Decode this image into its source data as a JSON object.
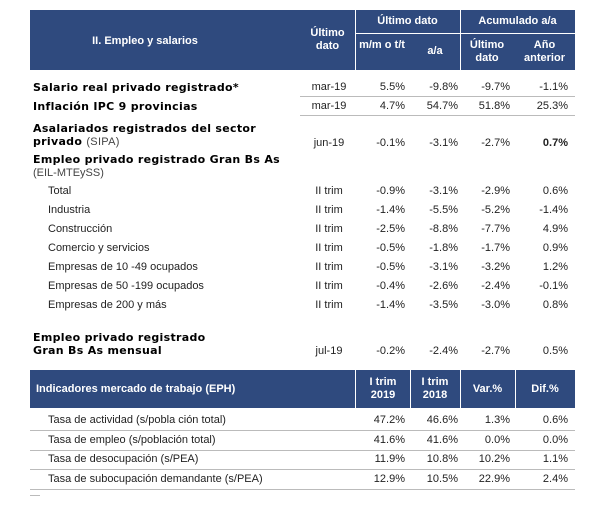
{
  "table1": {
    "header": {
      "title": "II. Empleo y salarios",
      "ultimo_dato": "Último dato",
      "group_last": "Último dato",
      "group_cum": "Acumulado a/a",
      "columns": [
        "m/m o t/t",
        "a/a",
        "Último dato",
        "Año anterior"
      ]
    },
    "rows": [
      {
        "label": "Salario real privado registrado*",
        "period": "mar-19",
        "values": [
          "5.5%",
          "-9.8%",
          "-9.7%",
          "-1.1%"
        ]
      },
      {
        "label": "Inflación IPC 9 provincias",
        "period": "mar-19",
        "values": [
          "4.7%",
          "54.7%",
          "51.8%",
          "25.3%"
        ]
      },
      {
        "label": "Asalariados registrados del sector privado",
        "note": "(SIPA)",
        "period": "jun-19",
        "values": [
          "-0.1%",
          "-3.1%",
          "-2.7%",
          "0.7%"
        ]
      }
    ],
    "section": {
      "title": "Empleo privado registrado Gran Bs As",
      "note": "(EIL-MTEySS)",
      "rows": [
        {
          "label": "Total",
          "period": "II trim",
          "values": [
            "-0.9%",
            "-3.1%",
            "-2.9%",
            "0.6%"
          ]
        },
        {
          "label": "Industria",
          "period": "II trim",
          "values": [
            "-1.4%",
            "-5.5%",
            "-5.2%",
            "-1.4%"
          ]
        },
        {
          "label": "Construcción",
          "period": "II trim",
          "values": [
            "-2.5%",
            "-8.8%",
            "-7.7%",
            "4.9%"
          ]
        },
        {
          "label": "Comercio y servicios",
          "period": "II trim",
          "values": [
            "-0.5%",
            "-1.8%",
            "-1.7%",
            "0.9%"
          ]
        },
        {
          "label": "Empresas de 10 -49 ocupados",
          "period": "II trim",
          "values": [
            "-0.5%",
            "-3.1%",
            "-3.2%",
            "1.2%"
          ]
        },
        {
          "label": "Empresas de 50 -199 ocupados",
          "period": "II trim",
          "values": [
            "-0.4%",
            "-2.6%",
            "-2.4%",
            "-0.1%"
          ]
        },
        {
          "label": "Empresas de 200 y más",
          "period": "II trim",
          "values": [
            "-1.4%",
            "-3.5%",
            "-3.0%",
            "0.8%"
          ]
        }
      ]
    },
    "monthly": {
      "label": "Empleo privado registrado Gran Bs As mensual",
      "period": "jul-19",
      "values": [
        "-0.2%",
        "-2.4%",
        "-2.7%",
        "0.5%"
      ]
    }
  },
  "table2": {
    "header": {
      "title": "Indicadores mercado de trabajo (EPH)",
      "columns": [
        "I trim 2019",
        "I trim 2018",
        "Var.%",
        "Dif.%"
      ]
    },
    "rows": [
      {
        "label": "Tasa de actividad (s/pobla ción total)",
        "values": [
          "47.2%",
          "46.6%",
          "1.3%",
          "0.6%"
        ]
      },
      {
        "label": "Tasa de empleo (s/población total)",
        "values": [
          "41.6%",
          "41.6%",
          "0.0%",
          "0.0%"
        ]
      },
      {
        "label": "Tasa de desocupación (s/PEA)",
        "values": [
          "11.9%",
          "10.8%",
          "10.2%",
          "1.1%"
        ]
      },
      {
        "label": "Tasa de subocupación demandante (s/PEA)",
        "values": [
          "12.9%",
          "10.5%",
          "22.9%",
          "2.4%"
        ]
      }
    ]
  }
}
